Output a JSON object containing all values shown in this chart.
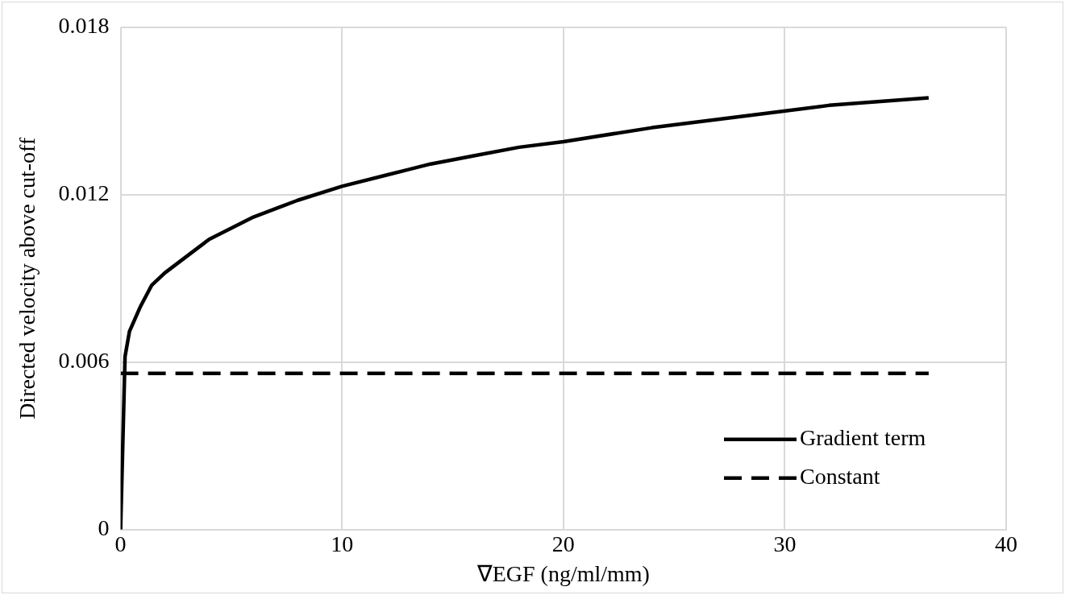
{
  "chart_data": {
    "type": "line",
    "xlabel": "∇EGF (ng/ml/mm)",
    "ylabel": "Directed velocity above cut-off",
    "xlim": [
      0,
      40
    ],
    "xticks": [
      0,
      10,
      20,
      30,
      40
    ],
    "ylim": [
      0,
      0.018
    ],
    "yticks": [
      0,
      0.006,
      0.012,
      0.018
    ],
    "grid": true,
    "legend": "bottom right",
    "marker": "none",
    "series": [
      {
        "name": "Gradient term",
        "color": "#000000",
        "line_style": "solid",
        "x": [
          0,
          0.2,
          0.4,
          0.9,
          1.4,
          2,
          4,
          6,
          8,
          10,
          12,
          14,
          16,
          18,
          20,
          24,
          28,
          32,
          36.5
        ],
        "values": [
          0,
          0.0062,
          0.0071,
          0.008,
          0.00875,
          0.0092,
          0.0104,
          0.0112,
          0.0118,
          0.0123,
          0.0127,
          0.0131,
          0.0134,
          0.0137,
          0.0139,
          0.0144,
          0.0148,
          0.0152,
          0.01547
        ]
      },
      {
        "name": "Constant",
        "color": "#000000",
        "line_style": "dashed",
        "x": [
          0,
          36.5
        ],
        "values": [
          0.0056,
          0.0056
        ]
      }
    ]
  }
}
